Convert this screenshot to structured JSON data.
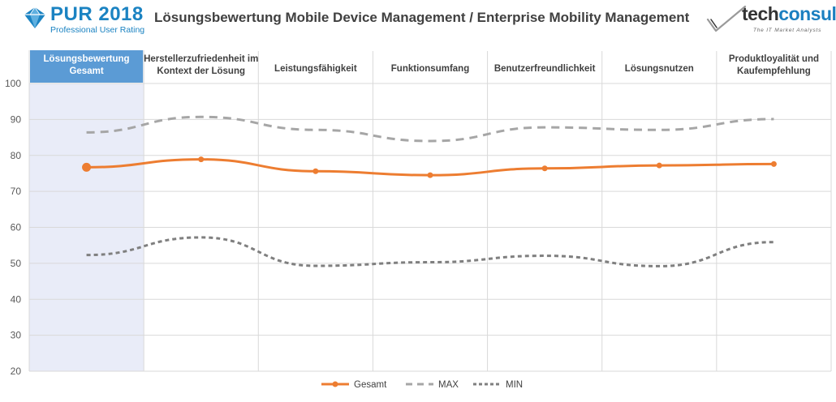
{
  "header": {
    "logo_title": "PUR 2018",
    "logo_subtitle": "Professional User Rating",
    "title": "Lösungsbewertung Mobile Device Management / Enterprise Mobility Management",
    "brand_name_a": "tech",
    "brand_name_b": "consult",
    "brand_tagline": "The IT Market Analysts"
  },
  "colors": {
    "gesamt": "#ed7d31",
    "max": "#a6a6a6",
    "min": "#7f7f7f",
    "highlight_band": "#e9ecf8",
    "highlight_header": "#5b9bd5",
    "brand_blue": "#1b83c2",
    "grid": "#d9d9d9"
  },
  "chart_data": {
    "type": "line",
    "categories": [
      [
        "Lösungsbewertung",
        "Gesamt"
      ],
      [
        "Herstellerzufriedenheit im",
        "Kontext der Lösung"
      ],
      [
        "Leistungsfähigkeit"
      ],
      [
        "Funktionsumfang"
      ],
      [
        "Benutzerfreundlichkeit"
      ],
      [
        "Lösungsnutzen"
      ],
      [
        "Produktloyalität und",
        "Kaufempfehlung"
      ]
    ],
    "highlighted_category": 0,
    "ylim": [
      20,
      100
    ],
    "yticks": [
      20,
      30,
      40,
      50,
      60,
      70,
      80,
      90,
      100
    ],
    "grid": true,
    "legend_position": "bottom",
    "series": [
      {
        "name": "Gesamt",
        "values": [
          76.7,
          78.9,
          75.6,
          74.5,
          76.4,
          77.2,
          77.6
        ],
        "style": "solid",
        "markers": true
      },
      {
        "name": "MAX",
        "values": [
          86.4,
          90.7,
          87.1,
          84.0,
          87.8,
          87.1,
          90.1
        ],
        "style": "dash",
        "markers": false
      },
      {
        "name": "MIN",
        "values": [
          52.3,
          57.2,
          49.3,
          50.3,
          52.1,
          49.2,
          55.9
        ],
        "style": "dot",
        "markers": false
      }
    ]
  }
}
